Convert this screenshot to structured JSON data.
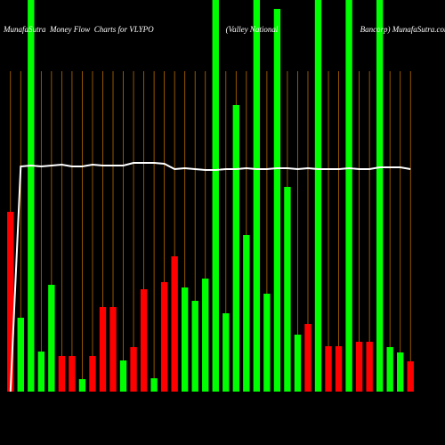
{
  "chart_data": {
    "type": "bar",
    "title": "MunafaSutra  Money Flow  Charts for VLYPO                                    (Valley National                                         Bancorp) MunafaSutra.com",
    "values": [
      202,
      83,
      440,
      45,
      120,
      40,
      40,
      14,
      40,
      95,
      95,
      35,
      50,
      115,
      15,
      123,
      152,
      117,
      102,
      127,
      440,
      88,
      322,
      176,
      440,
      110,
      430,
      230,
      64,
      76,
      440,
      51,
      51,
      440,
      56,
      56,
      440,
      50,
      44,
      34
    ],
    "colors": [
      "#ff0000",
      "#00ff00",
      "#00ff00",
      "#00ff00",
      "#00ff00",
      "#ff0000",
      "#ff0000",
      "#00ff00",
      "#ff0000",
      "#ff0000",
      "#ff0000",
      "#00ff00",
      "#ff0000",
      "#ff0000",
      "#00ff00",
      "#ff0000",
      "#ff0000",
      "#00ff00",
      "#00ff00",
      "#00ff00",
      "#00ff00",
      "#00ff00",
      "#00ff00",
      "#00ff00",
      "#00ff00",
      "#00ff00",
      "#00ff00",
      "#00ff00",
      "#00ff00",
      "#ff0000",
      "#00ff00",
      "#ff0000",
      "#ff0000",
      "#00ff00",
      "#ff0000",
      "#ff0000",
      "#00ff00",
      "#00ff00",
      "#00ff00",
      "#ff0000"
    ],
    "line": {
      "color": "#ffffff",
      "values": [
        0,
        253,
        254,
        253,
        254,
        255,
        253,
        253,
        255,
        254,
        254,
        254,
        257,
        257,
        257,
        256,
        250,
        251,
        250,
        249,
        249,
        250,
        250,
        251,
        250,
        250,
        251,
        251,
        250,
        251,
        250,
        250,
        250,
        251,
        250,
        250,
        252,
        252,
        252,
        250
      ]
    },
    "ylim": [
      0,
      440
    ],
    "grid_color": "#b86b00"
  }
}
